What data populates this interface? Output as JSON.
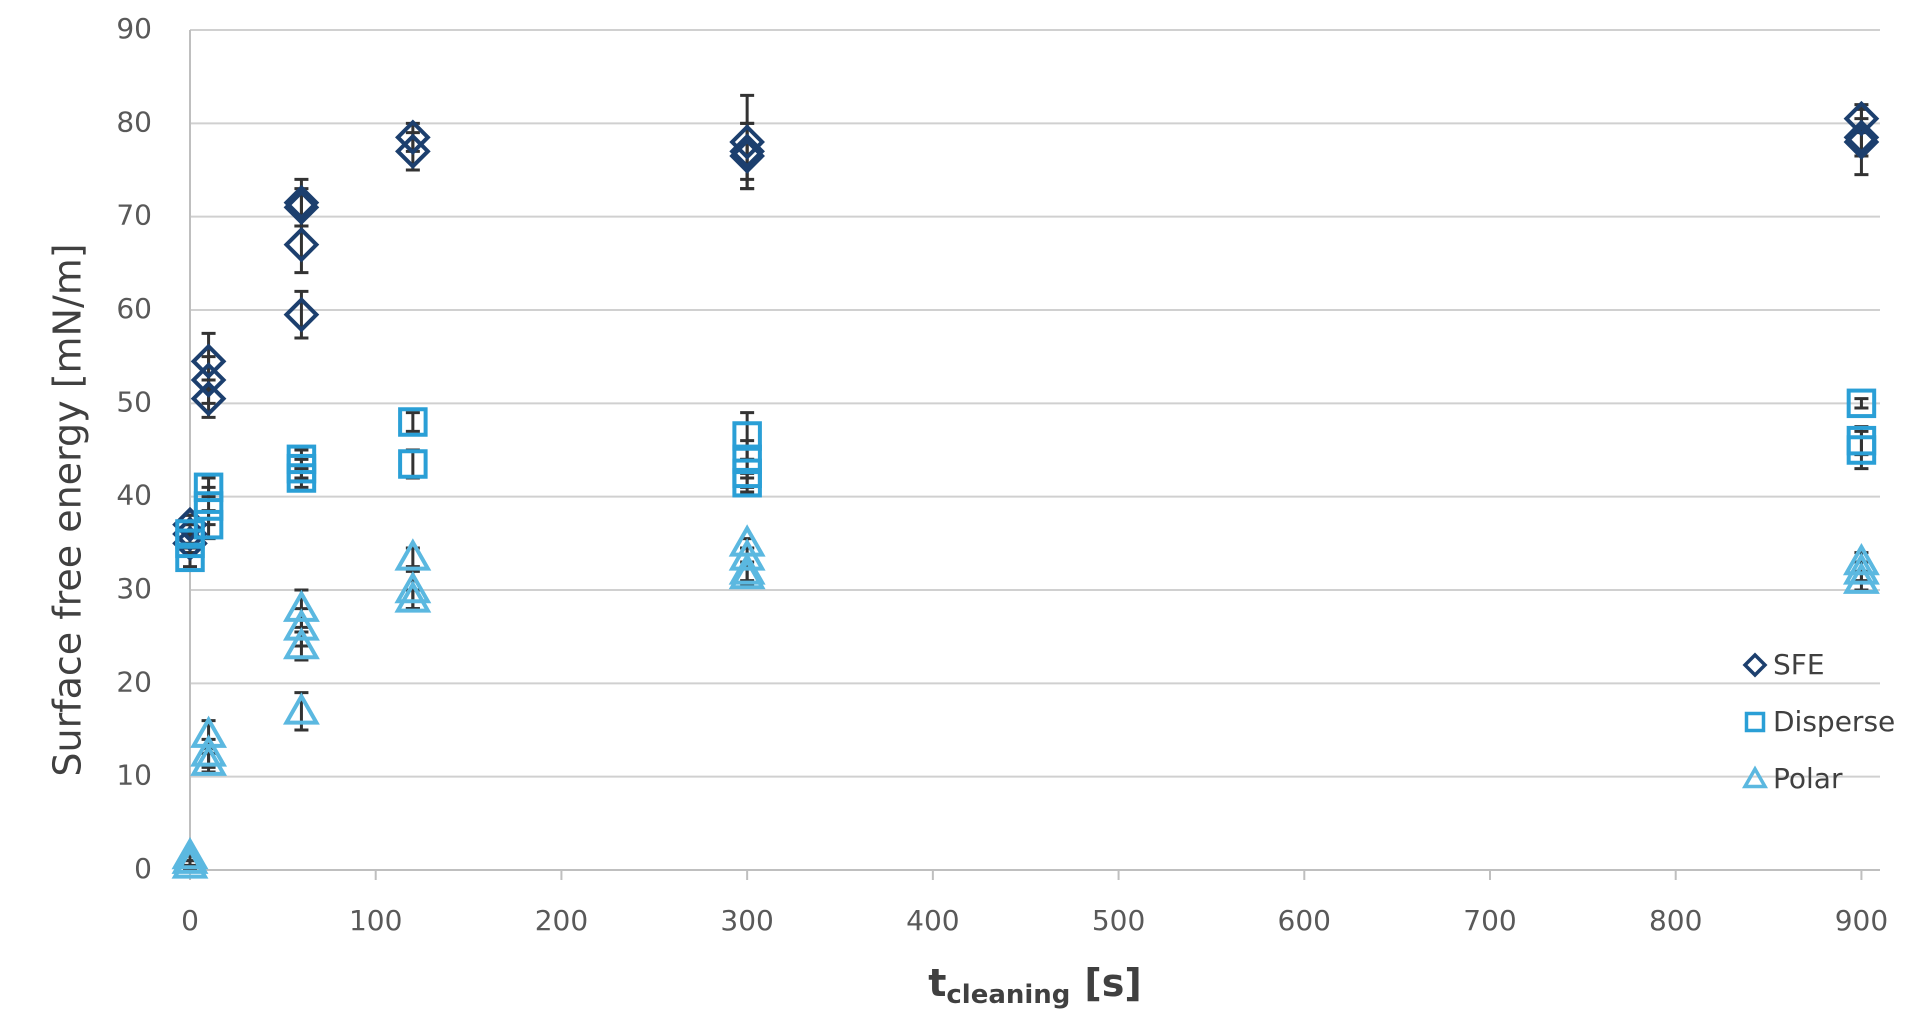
{
  "chart_data": {
    "type": "scatter",
    "y_label": "Surface free energy [mN/m]",
    "x_label": {
      "main": "t",
      "sub": "cleaning",
      "unit": "[s]"
    },
    "xlim": [
      0,
      910
    ],
    "xticks": [
      0,
      100,
      200,
      300,
      400,
      500,
      600,
      700,
      800,
      900
    ],
    "ylim": [
      0,
      90
    ],
    "yticks": [
      0,
      10,
      20,
      30,
      40,
      50,
      60,
      70,
      80,
      90
    ],
    "grid": true,
    "legend": "right",
    "error_color": "#333333",
    "series": [
      {
        "name": "SFE",
        "color": "#1c3f6e",
        "marker": "diamond",
        "x": [
          0,
          0,
          0,
          10,
          10,
          10,
          60,
          60,
          60,
          60,
          120,
          120,
          300,
          300,
          300,
          900,
          900,
          900
        ],
        "values": [
          37,
          36,
          35,
          54.5,
          52.5,
          50.5,
          71.5,
          71,
          67,
          59.5,
          78.5,
          77,
          78,
          77,
          76.5,
          80.5,
          78.5,
          78
        ],
        "errors": [
          1,
          1,
          1,
          3,
          2.5,
          2,
          2.5,
          2,
          3,
          2.5,
          1.5,
          2,
          5,
          3,
          3.5,
          1.5,
          2,
          3.5
        ]
      },
      {
        "name": "Disperse",
        "color": "#2a9fd6",
        "marker": "square",
        "x": [
          0,
          0,
          0,
          10,
          10,
          10,
          60,
          60,
          60,
          120,
          120,
          300,
          300,
          300,
          300,
          900,
          900,
          900
        ],
        "values": [
          36,
          35,
          33.5,
          41,
          39,
          37,
          44,
          43,
          42,
          48,
          43.5,
          46.5,
          44,
          42.5,
          41.5,
          50,
          46,
          45
        ],
        "errors": [
          1,
          1,
          1,
          1,
          2,
          1.5,
          1,
          1,
          1,
          1,
          1.5,
          2.5,
          2,
          1.5,
          1,
          0.5,
          1.5,
          2
        ]
      },
      {
        "name": "Polar",
        "color": "#5bb8e0",
        "marker": "triangle",
        "x": [
          0,
          0,
          0,
          10,
          10,
          10,
          60,
          60,
          60,
          60,
          120,
          120,
          120,
          300,
          300,
          300,
          300,
          900,
          900,
          900
        ],
        "values": [
          1.5,
          1,
          0.5,
          14.5,
          12.5,
          11.5,
          28,
          26,
          24,
          17,
          33.5,
          30,
          29,
          35,
          33.5,
          32,
          31.5,
          33,
          32,
          31
        ],
        "errors": [
          0.5,
          0.5,
          0.5,
          1.5,
          1.5,
          1,
          2,
          2,
          1.5,
          2,
          1,
          2,
          1,
          0.5,
          1,
          1,
          1,
          1,
          1,
          1
        ]
      }
    ]
  }
}
